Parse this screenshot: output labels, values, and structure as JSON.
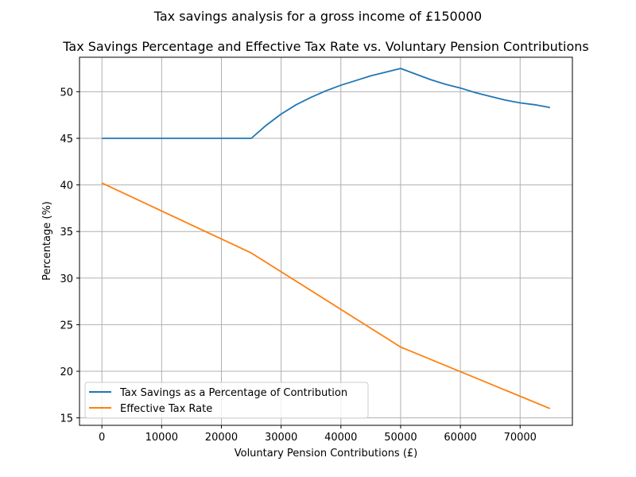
{
  "figure": {
    "suptitle": "Tax savings analysis for a gross income of £150000"
  },
  "chart_data": {
    "type": "line",
    "title": "Tax Savings Percentage and Effective Tax Rate vs. Voluntary Pension Contributions",
    "xlabel": "Voluntary Pension Contributions (£)",
    "ylabel": "Percentage (%)",
    "xlim": [
      -3750,
      78750
    ],
    "ylim": [
      14.2,
      53.7
    ],
    "xticks": [
      0,
      10000,
      20000,
      30000,
      40000,
      50000,
      60000,
      70000
    ],
    "yticks": [
      15,
      20,
      25,
      30,
      35,
      40,
      45,
      50
    ],
    "grid": true,
    "legend_position": "lower-left",
    "series": [
      {
        "name": "Tax Savings as a Percentage of Contribution",
        "color": "#1f77b4",
        "x": [
          0,
          5000,
          10000,
          15000,
          20000,
          25000,
          27500,
          30000,
          32500,
          35000,
          37500,
          40000,
          42500,
          45000,
          47500,
          50000,
          52500,
          55000,
          57500,
          60000,
          62500,
          65000,
          67500,
          70000,
          72500,
          75000
        ],
        "y": [
          45,
          45,
          45,
          45,
          45,
          45,
          46.4,
          47.6,
          48.6,
          49.4,
          50.1,
          50.7,
          51.2,
          51.7,
          52.1,
          52.5,
          51.9,
          51.3,
          50.8,
          50.4,
          49.9,
          49.5,
          49.1,
          48.8,
          48.6,
          48.3
        ]
      },
      {
        "name": "Effective Tax Rate",
        "color": "#ff7f0e",
        "x": [
          0,
          25000,
          50000,
          75000
        ],
        "y": [
          40.2,
          32.7,
          22.6,
          16.0
        ]
      }
    ]
  }
}
